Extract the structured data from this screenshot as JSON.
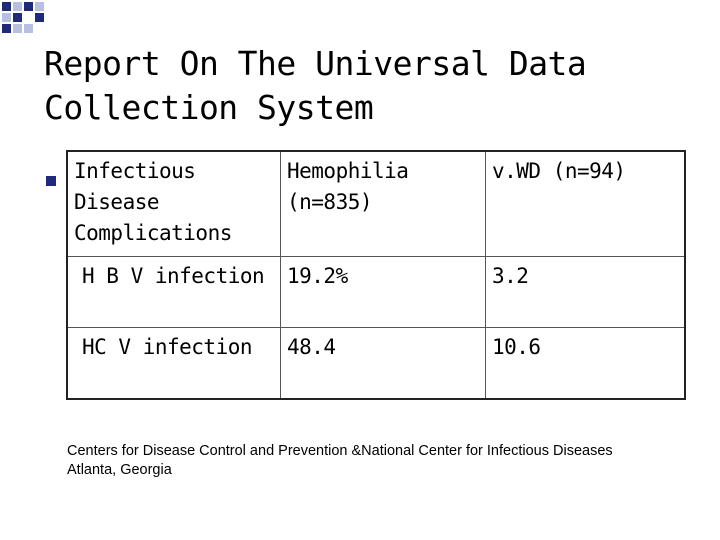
{
  "slide": {
    "title_line1": "Report On The Universal Data",
    "title_line2": "Collection System"
  },
  "table": {
    "header": [
      "Infectious\nDisease\nComplications",
      "Hemophilia\n(n=835)",
      "v.WD (n=94)"
    ],
    "rows": [
      [
        "H B V infection",
        "19.2%",
        "3.2"
      ],
      [
        "HC V infection",
        "48.4",
        "10.6"
      ]
    ]
  },
  "footer": {
    "line1": "Centers for Disease Control and Prevention &National Center for Infectious Diseases",
    "line2": "Atlanta, Georgia"
  },
  "colors": {
    "deco_blue": "#1f2a7a",
    "deco_light": "#b9bfe0"
  }
}
